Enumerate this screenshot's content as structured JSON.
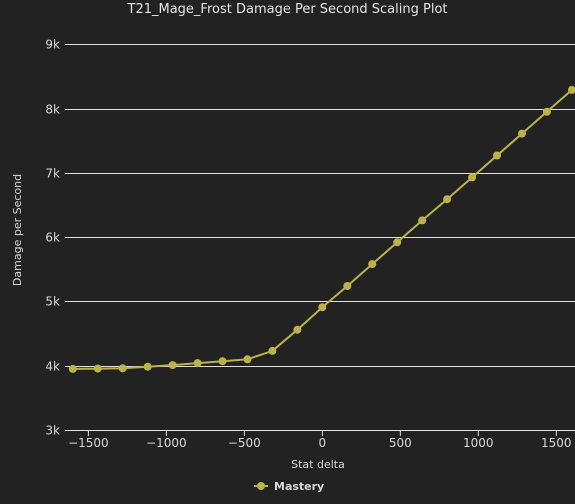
{
  "chart_data": {
    "type": "line",
    "title": "T21_Mage_Frost Damage Per Second Scaling Plot",
    "xlabel": "Stat delta",
    "ylabel": "Damage per Second",
    "xlim": [
      -1650,
      1620
    ],
    "ylim": [
      3000,
      9300
    ],
    "x_ticks": [
      -1500,
      -1000,
      -500,
      0,
      500,
      1000,
      1500
    ],
    "x_tick_labels": [
      "−1500",
      "−1000",
      "−500",
      "0",
      "500",
      "1000",
      "1500"
    ],
    "y_ticks": [
      3000,
      4000,
      5000,
      6000,
      7000,
      8000,
      9000
    ],
    "y_tick_labels": [
      "3k",
      "4k",
      "5k",
      "6k",
      "7k",
      "8k",
      "9k"
    ],
    "grid": "horizontal",
    "legend": "bottom-center",
    "series": [
      {
        "name": "Mastery",
        "color": "#bdb34a",
        "points": [
          {
            "x": -1600,
            "y": 3950
          },
          {
            "x": -1440,
            "y": 3955
          },
          {
            "x": -1280,
            "y": 3960
          },
          {
            "x": -1120,
            "y": 3985
          },
          {
            "x": -960,
            "y": 4010
          },
          {
            "x": -800,
            "y": 4040
          },
          {
            "x": -640,
            "y": 4070
          },
          {
            "x": -480,
            "y": 4100
          },
          {
            "x": -320,
            "y": 4230
          },
          {
            "x": -160,
            "y": 4560
          },
          {
            "x": 0,
            "y": 4910
          },
          {
            "x": 160,
            "y": 5240
          },
          {
            "x": 320,
            "y": 5580
          },
          {
            "x": 480,
            "y": 5920
          },
          {
            "x": 640,
            "y": 6260
          },
          {
            "x": 800,
            "y": 6590
          },
          {
            "x": 960,
            "y": 6930
          },
          {
            "x": 1120,
            "y": 7270
          },
          {
            "x": 1280,
            "y": 7610
          },
          {
            "x": 1440,
            "y": 7950
          },
          {
            "x": 1600,
            "y": 8290
          }
        ]
      }
    ]
  },
  "colors": {
    "background": "#222222",
    "grid": "#e0e0e0",
    "text": "#d8d8d8"
  }
}
